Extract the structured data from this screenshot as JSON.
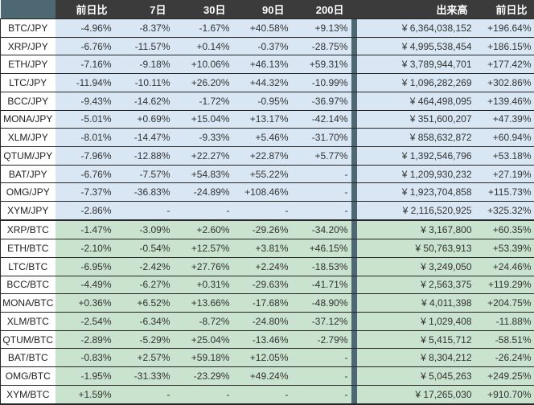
{
  "chart_data": {
    "type": "table",
    "columns": [
      "",
      "前日比",
      "7日",
      "30日",
      "90日",
      "200日",
      "出来高",
      "前日比"
    ],
    "sections": [
      {
        "name": "jpy-pairs",
        "css_class": "jpy",
        "rows": [
          {
            "pair": "BTC/JPY",
            "changes": [
              "-4.96%",
              "-8.37%",
              "-1.67%",
              "+40.58%",
              "+9.13%"
            ],
            "volume": "¥ 6,364,038,152",
            "day_change": "+196.64%"
          },
          {
            "pair": "XRP/JPY",
            "changes": [
              "-6.76%",
              "-11.57%",
              "+0.14%",
              "-0.37%",
              "-28.75%"
            ],
            "volume": "¥ 4,995,538,454",
            "day_change": "+186.15%"
          },
          {
            "pair": "ETH/JPY",
            "changes": [
              "-7.16%",
              "-9.18%",
              "+10.06%",
              "+46.13%",
              "+59.31%"
            ],
            "volume": "¥ 3,789,944,701",
            "day_change": "+177.42%"
          },
          {
            "pair": "LTC/JPY",
            "changes": [
              "-11.94%",
              "-10.11%",
              "+26.20%",
              "+44.32%",
              "-10.99%"
            ],
            "volume": "¥ 1,096,282,269",
            "day_change": "+302.86%"
          },
          {
            "pair": "BCC/JPY",
            "changes": [
              "-9.43%",
              "-14.62%",
              "-1.72%",
              "-0.95%",
              "-36.97%"
            ],
            "volume": "¥ 464,498,095",
            "day_change": "+139.46%"
          },
          {
            "pair": "MONA/JPY",
            "changes": [
              "-5.01%",
              "+0.69%",
              "+15.04%",
              "+13.17%",
              "-42.14%"
            ],
            "volume": "¥ 351,600,207",
            "day_change": "+47.39%"
          },
          {
            "pair": "XLM/JPY",
            "changes": [
              "-8.01%",
              "-14.47%",
              "-9.33%",
              "+5.46%",
              "-31.70%"
            ],
            "volume": "¥ 858,632,872",
            "day_change": "+60.94%"
          },
          {
            "pair": "QTUM/JPY",
            "changes": [
              "-7.96%",
              "-12.88%",
              "+22.27%",
              "+22.87%",
              "+5.77%"
            ],
            "volume": "¥ 1,392,546,796",
            "day_change": "+53.18%"
          },
          {
            "pair": "BAT/JPY",
            "changes": [
              "-6.76%",
              "-7.57%",
              "+54.83%",
              "+55.22%",
              "-"
            ],
            "volume": "¥ 1,209,930,232",
            "day_change": "+27.19%"
          },
          {
            "pair": "OMG/JPY",
            "changes": [
              "-7.37%",
              "-36.83%",
              "-24.89%",
              "+108.46%",
              "-"
            ],
            "volume": "¥ 1,923,704,858",
            "day_change": "+115.73%"
          },
          {
            "pair": "XYM/JPY",
            "changes": [
              "-2.86%",
              "-",
              "-",
              "-",
              "-"
            ],
            "volume": "¥ 2,116,520,925",
            "day_change": "+325.32%"
          }
        ]
      },
      {
        "name": "btc-pairs",
        "css_class": "btc",
        "rows": [
          {
            "pair": "XRP/BTC",
            "changes": [
              "-1.47%",
              "-3.09%",
              "+2.60%",
              "-29.26%",
              "-34.20%"
            ],
            "volume": "¥ 3,167,800",
            "day_change": "+60.35%"
          },
          {
            "pair": "ETH/BTC",
            "changes": [
              "-2.10%",
              "-0.54%",
              "+12.57%",
              "+3.81%",
              "+46.15%"
            ],
            "volume": "¥ 50,763,913",
            "day_change": "+53.39%"
          },
          {
            "pair": "LTC/BTC",
            "changes": [
              "-6.95%",
              "-2.42%",
              "+27.76%",
              "+2.24%",
              "-18.53%"
            ],
            "volume": "¥ 3,249,050",
            "day_change": "+24.46%"
          },
          {
            "pair": "BCC/BTC",
            "changes": [
              "-4.49%",
              "-6.27%",
              "+0.31%",
              "-29.63%",
              "-41.71%"
            ],
            "volume": "¥ 2,563,375",
            "day_change": "+119.29%"
          },
          {
            "pair": "MONA/BTC",
            "changes": [
              "+0.36%",
              "+6.52%",
              "+13.66%",
              "-17.68%",
              "-48.90%"
            ],
            "volume": "¥ 4,011,398",
            "day_change": "+204.75%"
          },
          {
            "pair": "XLM/BTC",
            "changes": [
              "-2.54%",
              "-6.34%",
              "-8.72%",
              "-24.80%",
              "-37.12%"
            ],
            "volume": "¥ 1,029,408",
            "day_change": "-11.88%"
          },
          {
            "pair": "QTUM/BTC",
            "changes": [
              "-2.89%",
              "-5.29%",
              "+25.04%",
              "-13.46%",
              "-2.79%"
            ],
            "volume": "¥ 5,415,712",
            "day_change": "-58.51%"
          },
          {
            "pair": "BAT/BTC",
            "changes": [
              "-0.83%",
              "+2.57%",
              "+59.18%",
              "+12.05%",
              "-"
            ],
            "volume": "¥ 8,304,212",
            "day_change": "-26.24%"
          },
          {
            "pair": "OMG/BTC",
            "changes": [
              "-1.95%",
              "-31.33%",
              "-23.29%",
              "+49.24%",
              "-"
            ],
            "volume": "¥ 5,045,263",
            "day_change": "+249.25%"
          },
          {
            "pair": "XYM/BTC",
            "changes": [
              "+1.59%",
              "-",
              "-",
              "-",
              "-"
            ],
            "volume": "¥ 17,265,030",
            "day_change": "+910.70%"
          }
        ]
      }
    ],
    "colors": {
      "header_bg": "#3b3b3b",
      "header_text": "#ffffff",
      "accent_divider": "#4d6872",
      "jpy_row_bg": "#d9e7f4",
      "btc_row_bg": "#c9e3ce",
      "pair_col_bg": "#ffffff",
      "border": "#262626",
      "text": "#333333"
    },
    "layout": {
      "legend_position": "none",
      "grid": "horizontal-borders",
      "section_separator": "thick-border-between-jpy-and-btc"
    }
  }
}
